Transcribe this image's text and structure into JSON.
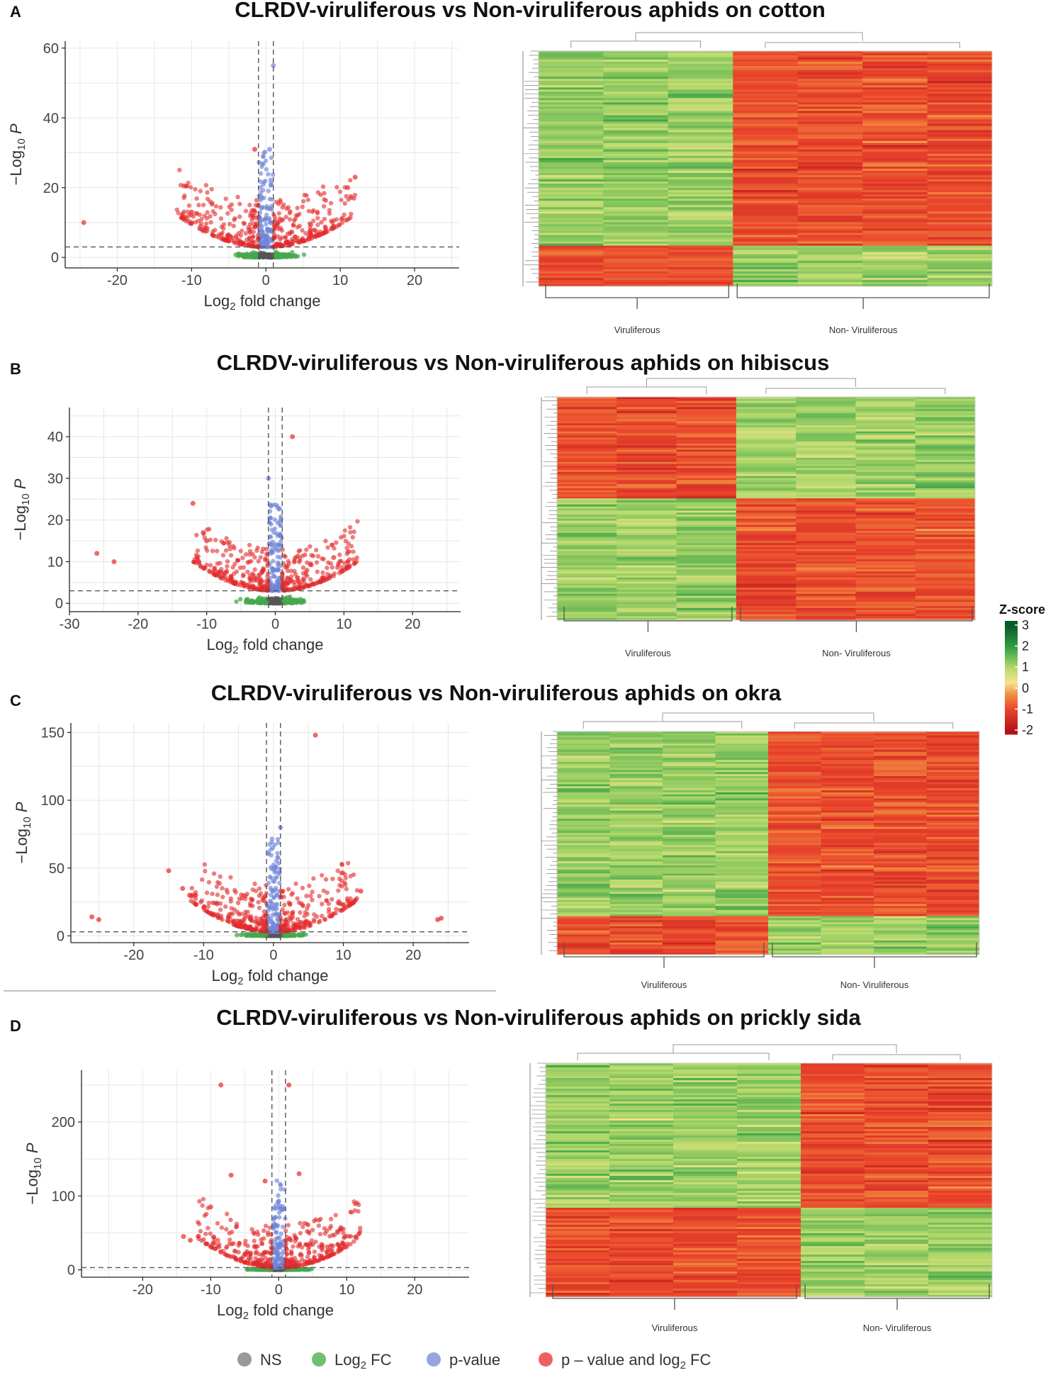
{
  "chart_data": [
    {
      "type": "scatter",
      "panel_label": "A",
      "title": "CLRDV-viruliferous vs Non-viruliferous aphids on cotton",
      "xlabel": "Log2 fold change",
      "ylabel": "−Log10 P",
      "xlim": [
        -27,
        26
      ],
      "ylim": [
        -3,
        62
      ],
      "xticks": [
        -20,
        -10,
        0,
        10,
        20
      ],
      "yticks": [
        0,
        20,
        40,
        60
      ],
      "thresholds": {
        "log2fc": [
          -1,
          1
        ],
        "neg_log10_p": 3
      },
      "highlight_points": [
        [
          -24.5,
          10
        ],
        [
          -11,
          20.5
        ],
        [
          -10,
          13
        ],
        [
          11,
          20
        ],
        [
          12,
          23
        ],
        [
          1,
          55
        ],
        [
          -1.5,
          31
        ],
        [
          0.5,
          31
        ]
      ],
      "heatmap": {
        "groups": [
          "Viruliferous",
          "Non- Viruliferous"
        ],
        "viruliferous_columns": 3,
        "non_viruliferous_columns": 4
      }
    },
    {
      "type": "scatter",
      "panel_label": "B",
      "title": "CLRDV-viruliferous vs Non-viruliferous aphids on hibiscus",
      "xlabel": "Log2 fold change",
      "ylabel": "−Log10 P",
      "xlim": [
        -30,
        27
      ],
      "ylim": [
        -2,
        47
      ],
      "xticks": [
        -30,
        -20,
        -10,
        0,
        10,
        20
      ],
      "yticks": [
        0,
        10,
        20,
        30,
        40
      ],
      "thresholds": {
        "log2fc": [
          -1,
          1
        ],
        "neg_log10_p": 3
      },
      "highlight_points": [
        [
          -26,
          12
        ],
        [
          -23.5,
          10
        ],
        [
          -12,
          24
        ],
        [
          -10.5,
          17
        ],
        [
          -10,
          15
        ],
        [
          2.5,
          40
        ],
        [
          -1,
          30
        ],
        [
          8.5,
          11
        ]
      ],
      "heatmap": {
        "groups": [
          "Viruliferous",
          "Non- Viruliferous"
        ],
        "viruliferous_columns": 3,
        "non_viruliferous_columns": 4
      }
    },
    {
      "type": "scatter",
      "panel_label": "C",
      "title": "CLRDV-viruliferous vs Non-viruliferous aphids on okra",
      "xlabel": "Log2 fold change",
      "ylabel": "−Log10 P",
      "xlim": [
        -29,
        28
      ],
      "ylim": [
        -5,
        157
      ],
      "xticks": [
        -20,
        -10,
        0,
        10,
        20
      ],
      "yticks": [
        0,
        50,
        100,
        150
      ],
      "thresholds": {
        "log2fc": [
          -1,
          1
        ],
        "neg_log10_p": 3
      },
      "highlight_points": [
        [
          -26,
          14
        ],
        [
          -25,
          12
        ],
        [
          -15,
          48
        ],
        [
          -13,
          35
        ],
        [
          -12,
          30
        ],
        [
          6,
          148
        ],
        [
          1,
          80
        ],
        [
          12.5,
          33
        ],
        [
          23.5,
          12
        ],
        [
          24,
          13
        ]
      ],
      "heatmap": {
        "groups": [
          "Viruliferous",
          "Non- Viruliferous"
        ],
        "viruliferous_columns": 4,
        "non_viruliferous_columns": 4
      }
    },
    {
      "type": "scatter",
      "panel_label": "D",
      "title": "CLRDV-viruliferous vs Non-viruliferous aphids on prickly sida",
      "xlabel": "Log2 fold change",
      "ylabel": "−Log10 P",
      "xlim": [
        -29,
        28
      ],
      "ylim": [
        -10,
        270
      ],
      "xticks": [
        -20,
        -10,
        0,
        10,
        20
      ],
      "yticks": [
        0,
        100,
        200
      ],
      "thresholds": {
        "log2fc": [
          -1,
          1
        ],
        "neg_log10_p": 3
      },
      "highlight_points": [
        [
          -8.5,
          250
        ],
        [
          -7,
          128
        ],
        [
          1.5,
          250
        ],
        [
          -14,
          45
        ],
        [
          -13,
          40
        ],
        [
          -10,
          85
        ],
        [
          3,
          130
        ],
        [
          -2,
          120
        ]
      ],
      "heatmap": {
        "groups": [
          "Viruliferous",
          "Non- Viruliferous"
        ],
        "viruliferous_columns": 4,
        "non_viruliferous_columns": 3
      }
    }
  ],
  "colorbar": {
    "title": "Z-score",
    "ticks": [
      3,
      2,
      1,
      0,
      -1,
      -2
    ],
    "colors": [
      "#0b5d2b",
      "#2ea447",
      "#c2e27a",
      "#f5e38a",
      "#ef6f3a",
      "#c4151c"
    ]
  },
  "legend": {
    "items": [
      {
        "label": "NS",
        "color": "#7f7f7f"
      },
      {
        "label": "Log2 FC",
        "color": "#4caf50"
      },
      {
        "label": "p-value",
        "color": "#7b8fd6"
      },
      {
        "label": "p – value and log2 FC",
        "color": "#e8383b"
      }
    ]
  }
}
